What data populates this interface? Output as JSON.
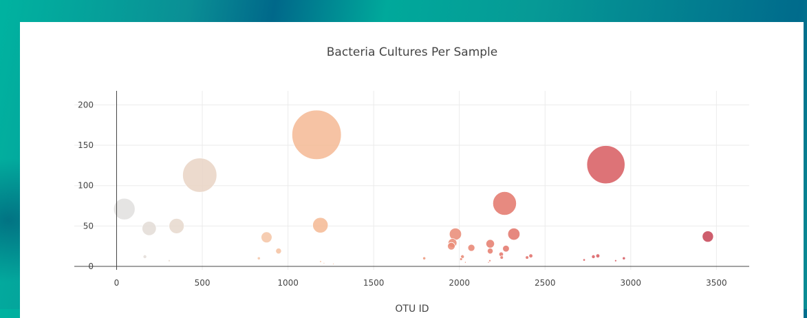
{
  "chart_data": {
    "type": "scatter",
    "title": "Bacteria Cultures Per Sample",
    "xlabel": "OTU ID",
    "ylabel": "",
    "xlim": [
      -200,
      3700
    ],
    "ylim": [
      -5,
      218
    ],
    "xticks": [
      0,
      500,
      1000,
      1500,
      2000,
      2500,
      3000,
      3500
    ],
    "yticks": [
      0,
      50,
      100,
      150,
      200
    ],
    "grid": true,
    "colorscale": [
      "#e0e0e0",
      "#e8d6c8",
      "#f4c4a4",
      "#f6b38c",
      "#ee9a7c",
      "#e57a6c",
      "#dc6262",
      "#d3525c",
      "#c44052"
    ],
    "points": [
      {
        "x": 45,
        "y": 71
      },
      {
        "x": 190,
        "y": 47
      },
      {
        "x": 350,
        "y": 50
      },
      {
        "x": 485,
        "y": 113
      },
      {
        "x": 165,
        "y": 12
      },
      {
        "x": 307,
        "y": 7
      },
      {
        "x": 875,
        "y": 36
      },
      {
        "x": 945,
        "y": 19
      },
      {
        "x": 830,
        "y": 10
      },
      {
        "x": 1167,
        "y": 163
      },
      {
        "x": 1189,
        "y": 51
      },
      {
        "x": 1190,
        "y": 6
      },
      {
        "x": 1210,
        "y": 4
      },
      {
        "x": 1265,
        "y": 3
      },
      {
        "x": 1795,
        "y": 10
      },
      {
        "x": 1977,
        "y": 40
      },
      {
        "x": 1960,
        "y": 29
      },
      {
        "x": 1953,
        "y": 25
      },
      {
        "x": 2070,
        "y": 23
      },
      {
        "x": 2018,
        "y": 12
      },
      {
        "x": 2010,
        "y": 9
      },
      {
        "x": 2035,
        "y": 5
      },
      {
        "x": 2180,
        "y": 28
      },
      {
        "x": 2180,
        "y": 19
      },
      {
        "x": 2178,
        "y": 7
      },
      {
        "x": 2170,
        "y": 5
      },
      {
        "x": 2264,
        "y": 78
      },
      {
        "x": 2318,
        "y": 40
      },
      {
        "x": 2272,
        "y": 22
      },
      {
        "x": 2244,
        "y": 15
      },
      {
        "x": 2247,
        "y": 11
      },
      {
        "x": 2395,
        "y": 11
      },
      {
        "x": 2417,
        "y": 13
      },
      {
        "x": 2855,
        "y": 126
      },
      {
        "x": 2728,
        "y": 8
      },
      {
        "x": 2782,
        "y": 12
      },
      {
        "x": 2808,
        "y": 13
      },
      {
        "x": 2912,
        "y": 7
      },
      {
        "x": 2960,
        "y": 10
      },
      {
        "x": 3450,
        "y": 37
      }
    ]
  }
}
